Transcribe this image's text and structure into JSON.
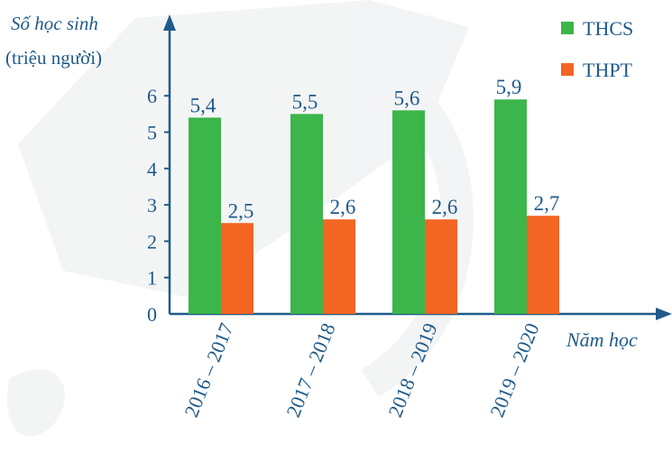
{
  "chart_data": {
    "type": "bar",
    "ylabel_line1": "Số học sinh",
    "ylabel_line2": "(triệu người)",
    "xlabel": "Năm học",
    "categories": [
      "2016 – 2017",
      "2017 – 2018",
      "2018 – 2019",
      "2019 – 2020"
    ],
    "series": [
      {
        "name": "THCS",
        "values": [
          5.4,
          5.5,
          5.6,
          5.9
        ],
        "labels": [
          "5,4",
          "5,5",
          "5,6",
          "5,9"
        ],
        "color": "#3cb54a"
      },
      {
        "name": "THPT",
        "values": [
          2.5,
          2.6,
          2.6,
          2.7
        ],
        "labels": [
          "2,5",
          "2,6",
          "2,6",
          "2,7"
        ],
        "color": "#f26522"
      }
    ],
    "yticks": [
      "0",
      "1",
      "2",
      "3",
      "4",
      "5",
      "6"
    ],
    "ylim": [
      0,
      6
    ],
    "axis_color": "#1f5a8a",
    "legend_position": "top-right",
    "grid": false
  }
}
